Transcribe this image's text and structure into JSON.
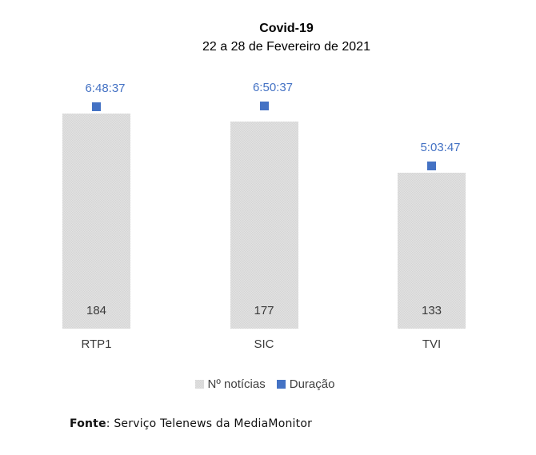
{
  "chart_data": {
    "type": "bar",
    "title": "Covid-19",
    "subtitle": "22 a 28 de Fevereiro de 2021",
    "categories": [
      "RTP1",
      "SIC",
      "TVI"
    ],
    "series": [
      {
        "name": "Nº notícias",
        "type": "bar",
        "values": [
          184,
          177,
          133
        ],
        "color": "#d9d9d9"
      },
      {
        "name": "Duração",
        "type": "square-marker",
        "values": [
          "6:48:37",
          "6:50:37",
          "5:03:47"
        ],
        "color": "#4472c4"
      }
    ],
    "value_labels_position": "inside-base",
    "legend_position": "bottom",
    "grid": false,
    "axes_visible": false,
    "colors": {
      "bar_fill": "#d9d9d9",
      "marker_fill": "#4472c4",
      "duration_text": "#4472c4",
      "label_text": "#3b3b3b",
      "legend_text": "#404040",
      "title_text": "#000000"
    }
  },
  "source": {
    "label": "Fonte",
    "text": ": Serviço Telenews da MediaMonitor"
  }
}
